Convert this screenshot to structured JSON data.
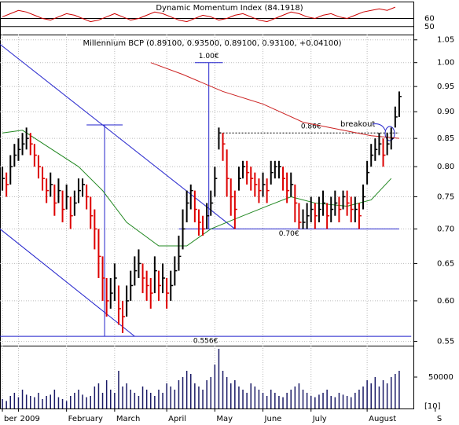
{
  "chart_data": {
    "type": "ohlc",
    "title": "Millennium BCP (0.89100, 0.93500, 0.89100, 0.93100, +0.04100)",
    "up_color": "#000000",
    "down_color": "#dd0000",
    "log_scale": true,
    "grid": true,
    "ylim": [
      0.545,
      1.062
    ],
    "yticks": [
      1.05,
      {
        "value": 1.0,
        "label": "1.00"
      },
      0.95,
      {
        "value": 0.9,
        "label": "0.90"
      },
      0.85,
      {
        "value": 0.8,
        "label": "0.80"
      },
      0.75,
      {
        "value": 0.7,
        "label": "0.70"
      },
      0.65,
      {
        "value": 0.6,
        "label": "0.60"
      },
      0.55
    ],
    "xlim": [
      -0.6,
      109.8
    ],
    "xticks": [
      {
        "value": 0,
        "label": "ber"
      },
      {
        "value": 4,
        "label": "2009"
      },
      {
        "value": 16,
        "label": "February"
      },
      {
        "value": 28,
        "label": "March"
      },
      {
        "value": 41,
        "label": "April"
      },
      {
        "value": 53,
        "label": "May"
      },
      {
        "value": 65,
        "label": "June"
      },
      {
        "value": 77,
        "label": "July"
      },
      {
        "value": 91,
        "label": "August"
      },
      {
        "value": 108,
        "label": "S"
      }
    ],
    "high": [
      0.8,
      0.79,
      0.82,
      0.84,
      0.85,
      0.86,
      0.87,
      0.86,
      0.84,
      0.82,
      0.8,
      0.78,
      0.79,
      0.77,
      0.78,
      0.76,
      0.77,
      0.75,
      0.76,
      0.78,
      0.78,
      0.77,
      0.75,
      0.73,
      0.7,
      0.66,
      0.63,
      0.63,
      0.65,
      0.62,
      0.6,
      0.62,
      0.64,
      0.66,
      0.67,
      0.65,
      0.64,
      0.63,
      0.66,
      0.64,
      0.65,
      0.63,
      0.64,
      0.66,
      0.69,
      0.73,
      0.76,
      0.77,
      0.76,
      0.73,
      0.72,
      0.74,
      0.76,
      0.8,
      0.87,
      0.86,
      0.83,
      0.78,
      0.76,
      0.8,
      0.81,
      0.81,
      0.8,
      0.79,
      0.78,
      0.79,
      0.78,
      0.81,
      0.81,
      0.81,
      0.8,
      0.79,
      0.79,
      0.77,
      0.74,
      0.73,
      0.74,
      0.75,
      0.74,
      0.75,
      0.76,
      0.74,
      0.75,
      0.76,
      0.75,
      0.76,
      0.76,
      0.75,
      0.75,
      0.74,
      0.77,
      0.81,
      0.84,
      0.85,
      0.86,
      0.85,
      0.86,
      0.87,
      0.91,
      0.94
    ],
    "low": [
      0.76,
      0.75,
      0.77,
      0.8,
      0.81,
      0.82,
      0.83,
      0.82,
      0.8,
      0.78,
      0.76,
      0.74,
      0.75,
      0.72,
      0.74,
      0.71,
      0.73,
      0.7,
      0.72,
      0.74,
      0.75,
      0.73,
      0.7,
      0.67,
      0.63,
      0.6,
      0.58,
      0.59,
      0.6,
      0.57,
      0.56,
      0.58,
      0.6,
      0.62,
      0.63,
      0.61,
      0.6,
      0.59,
      0.61,
      0.6,
      0.61,
      0.59,
      0.6,
      0.62,
      0.64,
      0.67,
      0.71,
      0.73,
      0.71,
      0.69,
      0.69,
      0.7,
      0.72,
      0.75,
      0.83,
      0.81,
      0.75,
      0.72,
      0.7,
      0.76,
      0.78,
      0.77,
      0.76,
      0.75,
      0.74,
      0.75,
      0.74,
      0.77,
      0.78,
      0.78,
      0.76,
      0.74,
      0.75,
      0.71,
      0.7,
      0.7,
      0.7,
      0.71,
      0.7,
      0.71,
      0.72,
      0.7,
      0.71,
      0.72,
      0.71,
      0.73,
      0.72,
      0.71,
      0.71,
      0.7,
      0.73,
      0.77,
      0.8,
      0.81,
      0.82,
      0.8,
      0.82,
      0.83,
      0.87,
      0.89
    ],
    "close": [
      0.78,
      0.77,
      0.8,
      0.82,
      0.83,
      0.84,
      0.85,
      0.84,
      0.82,
      0.8,
      0.78,
      0.76,
      0.77,
      0.74,
      0.76,
      0.73,
      0.75,
      0.72,
      0.74,
      0.76,
      0.77,
      0.75,
      0.72,
      0.7,
      0.66,
      0.63,
      0.6,
      0.61,
      0.63,
      0.59,
      0.58,
      0.6,
      0.62,
      0.64,
      0.65,
      0.63,
      0.62,
      0.61,
      0.64,
      0.62,
      0.63,
      0.61,
      0.62,
      0.64,
      0.66,
      0.7,
      0.74,
      0.76,
      0.73,
      0.71,
      0.7,
      0.72,
      0.74,
      0.78,
      0.86,
      0.84,
      0.78,
      0.75,
      0.73,
      0.78,
      0.8,
      0.79,
      0.78,
      0.77,
      0.76,
      0.77,
      0.76,
      0.79,
      0.8,
      0.8,
      0.78,
      0.76,
      0.77,
      0.74,
      0.71,
      0.71,
      0.72,
      0.73,
      0.72,
      0.73,
      0.74,
      0.72,
      0.73,
      0.74,
      0.73,
      0.75,
      0.74,
      0.73,
      0.73,
      0.72,
      0.75,
      0.79,
      0.82,
      0.83,
      0.84,
      0.82,
      0.84,
      0.85,
      0.89,
      0.93
    ],
    "averages": [
      {
        "color": "#cc2222",
        "x": [
          37,
          45,
          55,
          65,
          75,
          85,
          92,
          99
        ],
        "values": [
          1.0,
          0.975,
          0.94,
          0.915,
          0.88,
          0.865,
          0.855,
          0.85
        ]
      },
      {
        "color": "#228822",
        "x": [
          0,
          5,
          19,
          25,
          31,
          39,
          46,
          52,
          58,
          66,
          72,
          78,
          86,
          92,
          97
        ],
        "values": [
          0.86,
          0.865,
          0.8,
          0.76,
          0.71,
          0.675,
          0.675,
          0.7,
          0.715,
          0.735,
          0.75,
          0.74,
          0.735,
          0.745,
          0.78
        ]
      }
    ],
    "line_color": "#2222cc",
    "trendlines": [
      {
        "x": [
          -0.6,
          58
        ],
        "y": [
          1.04,
          0.7
        ]
      },
      {
        "x": [
          -0.6,
          33
        ],
        "y": [
          0.7,
          0.556
        ]
      }
    ],
    "measures": [
      {
        "x": 25.5,
        "low": 0.556,
        "high": 0.875
      },
      {
        "x": 51.5,
        "low": 0.7,
        "high": 1.0
      }
    ],
    "levels": [
      {
        "value": 0.875,
        "x": [
          21,
          30
        ]
      },
      {
        "value": 1.0,
        "label": "1.00€",
        "x": [
          48,
          55
        ]
      },
      {
        "value": 0.86,
        "label": "0.86€",
        "x": [
          55,
          99
        ],
        "dashed": true
      },
      {
        "value": 0.7,
        "label": "0.70€",
        "x": [
          44,
          99
        ]
      },
      {
        "value": 0.556,
        "label": "0.556€",
        "x": [
          -0.6,
          102
        ]
      }
    ],
    "breakout": "breakout",
    "indicator": {
      "title": "Dynamic Momentum Index (84.1918)",
      "color": "#cc0000",
      "ylim": [
        40,
        80
      ],
      "yticks": [
        60,
        50
      ],
      "x": [
        0,
        2,
        4,
        6,
        8,
        10,
        12,
        14,
        16,
        18,
        20,
        22,
        24,
        26,
        28,
        30,
        32,
        34,
        36,
        38,
        40,
        42,
        44,
        46,
        48,
        50,
        52,
        54,
        56,
        58,
        60,
        62,
        64,
        66,
        68,
        70,
        72,
        74,
        76,
        78,
        80,
        82,
        84,
        86,
        88,
        90,
        92,
        94,
        96,
        98
      ],
      "values": [
        62,
        66,
        70,
        68,
        64,
        60,
        58,
        62,
        66,
        64,
        60,
        56,
        58,
        62,
        66,
        62,
        58,
        60,
        64,
        68,
        66,
        62,
        58,
        56,
        60,
        64,
        62,
        58,
        60,
        64,
        66,
        62,
        58,
        56,
        60,
        64,
        68,
        66,
        62,
        60,
        64,
        66,
        62,
        60,
        64,
        68,
        70,
        72,
        70,
        74
      ]
    },
    "volume": {
      "color": "#1a1a66",
      "ylim": [
        0,
        100000
      ],
      "yticks": [
        50000
      ],
      "note": "[10]",
      "values": [
        15000,
        12000,
        20000,
        25000,
        18000,
        30000,
        22000,
        20000,
        18000,
        25000,
        15000,
        20000,
        22000,
        30000,
        18000,
        15000,
        12000,
        20000,
        25000,
        30000,
        22000,
        18000,
        20000,
        35000,
        40000,
        25000,
        45000,
        30000,
        25000,
        60000,
        35000,
        40000,
        30000,
        25000,
        20000,
        35000,
        30000,
        25000,
        20000,
        30000,
        25000,
        40000,
        35000,
        30000,
        45000,
        50000,
        60000,
        55000,
        40000,
        35000,
        30000,
        45000,
        50000,
        70000,
        95000,
        60000,
        50000,
        40000,
        45000,
        35000,
        30000,
        25000,
        40000,
        35000,
        30000,
        25000,
        20000,
        30000,
        25000,
        20000,
        18000,
        25000,
        30000,
        35000,
        40000,
        30000,
        25000,
        20000,
        18000,
        22000,
        25000,
        30000,
        20000,
        18000,
        25000,
        22000,
        20000,
        18000,
        25000,
        30000,
        35000,
        45000,
        40000,
        50000,
        35000,
        45000,
        40000,
        50000,
        55000,
        60000
      ]
    }
  }
}
